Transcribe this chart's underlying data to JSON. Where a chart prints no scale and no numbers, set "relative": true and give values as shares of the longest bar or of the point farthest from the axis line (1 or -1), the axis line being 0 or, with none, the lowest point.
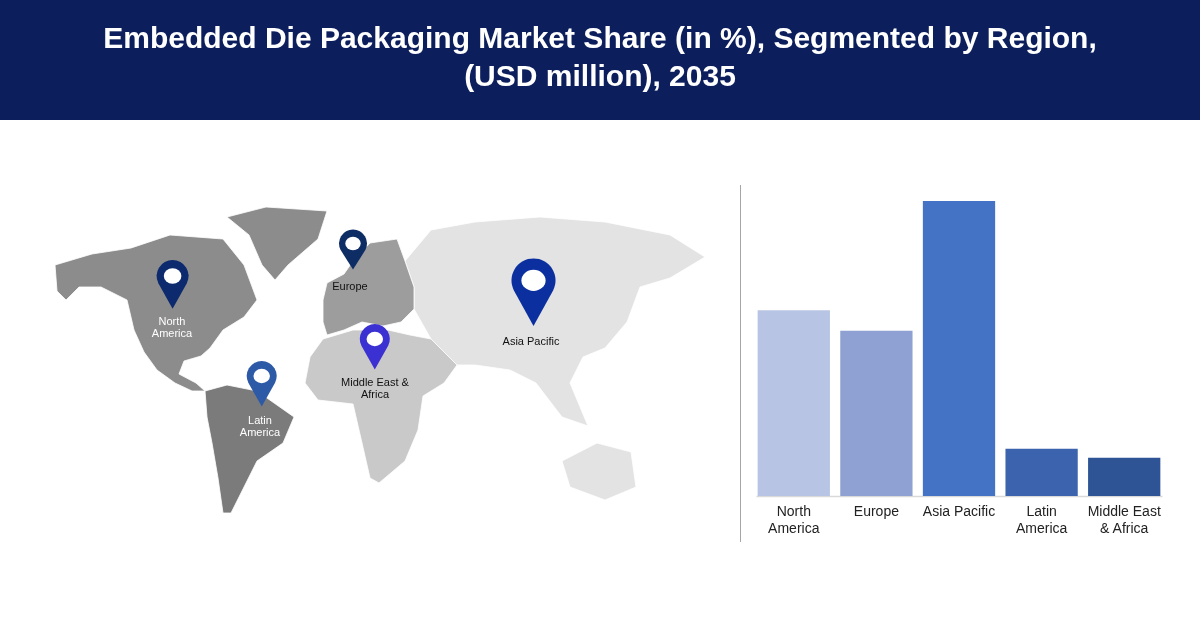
{
  "chart_data": {
    "type": "bar",
    "title": "Embedded Die Packaging Market Share (in %), Segmented by Region, (USD million), 2035",
    "categories": [
      "North America",
      "Europe",
      "Asia Pacific",
      "Latin America",
      "Middle East & Africa"
    ],
    "values": [
      0.63,
      0.56,
      1,
      0.16,
      0.13
    ],
    "colors": [
      "#b8c4e3",
      "#8fa1d3",
      "#4472c4",
      "#3c63ad",
      "#2f5496"
    ],
    "relative": true
  }
}
